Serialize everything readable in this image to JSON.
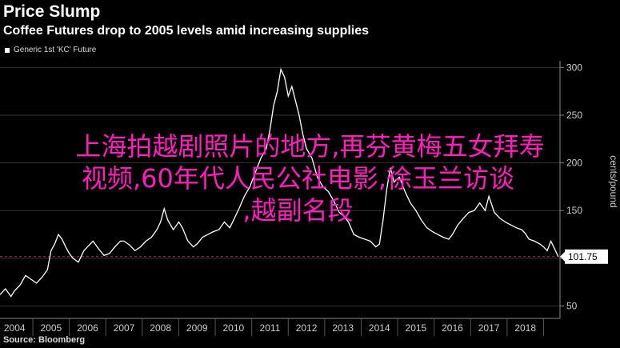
{
  "header": {
    "title": "Price Slump",
    "subtitle": "Coffee Futures drop to 2005 levels amid increasing supplies"
  },
  "legend": {
    "label": "Generic 1st 'KC' Future"
  },
  "source": "Source: Bloomberg",
  "overlay": {
    "line1": "上海拍越剧照片的地方,再芬黄梅五女拜寿",
    "line2": "视频,60年代人民公社电影,徐玉兰访谈",
    "line3": ",越副名段"
  },
  "colors": {
    "line": "#ffffff",
    "reference": "#c0206a",
    "overlay": "#ff1fbd",
    "background": "#000000"
  },
  "chart_data": {
    "type": "line",
    "title": "Price Slump",
    "subtitle": "Coffee Futures drop to 2005 levels amid increasing supplies",
    "xlabel": "",
    "ylabel": "cents/pound",
    "x_ticks": [
      "2004",
      "2005",
      "2006",
      "2007",
      "2008",
      "2009",
      "2010",
      "2011",
      "2012",
      "2013",
      "2014",
      "2015",
      "2016",
      "2017",
      "2018"
    ],
    "xlim": [
      2003.6,
      2018.95
    ],
    "y_ticks": [
      50,
      100,
      150,
      200,
      250,
      300
    ],
    "ylim": [
      37,
      307
    ],
    "last_value": 101.75,
    "last_value_label": "101.75",
    "reference_line": 101.75,
    "grid": true,
    "legend_position": "top-left",
    "series": [
      {
        "name": "Generic 1st 'KC' Future",
        "x": [
          2003.6,
          2003.75,
          2003.9,
          2004.0,
          2004.15,
          2004.3,
          2004.45,
          2004.6,
          2004.75,
          2004.9,
          2005.0,
          2005.1,
          2005.2,
          2005.3,
          2005.4,
          2005.5,
          2005.6,
          2005.75,
          2005.9,
          2006.0,
          2006.15,
          2006.3,
          2006.45,
          2006.6,
          2006.75,
          2006.9,
          2007.0,
          2007.15,
          2007.3,
          2007.45,
          2007.6,
          2007.75,
          2007.9,
          2008.0,
          2008.1,
          2008.2,
          2008.35,
          2008.5,
          2008.6,
          2008.75,
          2008.9,
          2009.0,
          2009.15,
          2009.3,
          2009.45,
          2009.6,
          2009.75,
          2009.9,
          2010.0,
          2010.15,
          2010.3,
          2010.45,
          2010.6,
          2010.75,
          2010.9,
          2011.0,
          2011.1,
          2011.2,
          2011.3,
          2011.4,
          2011.5,
          2011.6,
          2011.7,
          2011.8,
          2011.9,
          2012.0,
          2012.15,
          2012.3,
          2012.45,
          2012.6,
          2012.75,
          2012.9,
          2013.0,
          2013.15,
          2013.3,
          2013.45,
          2013.6,
          2013.75,
          2013.9,
          2014.0,
          2014.1,
          2014.2,
          2014.3,
          2014.4,
          2014.55,
          2014.7,
          2014.85,
          2015.0,
          2015.15,
          2015.3,
          2015.45,
          2015.6,
          2015.75,
          2015.9,
          2016.0,
          2016.15,
          2016.3,
          2016.45,
          2016.6,
          2016.75,
          2016.9,
          2017.0,
          2017.15,
          2017.3,
          2017.45,
          2017.6,
          2017.75,
          2017.9,
          2018.0,
          2018.1,
          2018.25,
          2018.4,
          2018.5,
          2018.6,
          2018.7,
          2018.8,
          2018.9
        ],
        "values": [
          62,
          68,
          60,
          66,
          72,
          82,
          78,
          74,
          80,
          88,
          108,
          115,
          125,
          120,
          112,
          105,
          100,
          96,
          108,
          112,
          118,
          110,
          103,
          105,
          112,
          118,
          118,
          114,
          108,
          112,
          118,
          122,
          130,
          138,
          152,
          140,
          130,
          138,
          132,
          118,
          112,
          115,
          122,
          125,
          128,
          130,
          138,
          132,
          140,
          152,
          165,
          175,
          190,
          205,
          215,
          235,
          260,
          275,
          298,
          290,
          270,
          280,
          265,
          250,
          230,
          215,
          205,
          185,
          175,
          170,
          160,
          148,
          145,
          138,
          125,
          122,
          120,
          118,
          112,
          115,
          140,
          172,
          195,
          180,
          185,
          170,
          158,
          150,
          140,
          132,
          128,
          125,
          122,
          120,
          125,
          135,
          142,
          148,
          150,
          158,
          150,
          165,
          148,
          142,
          138,
          135,
          132,
          130,
          126,
          120,
          118,
          115,
          112,
          108,
          118,
          110,
          102
        ]
      }
    ]
  }
}
